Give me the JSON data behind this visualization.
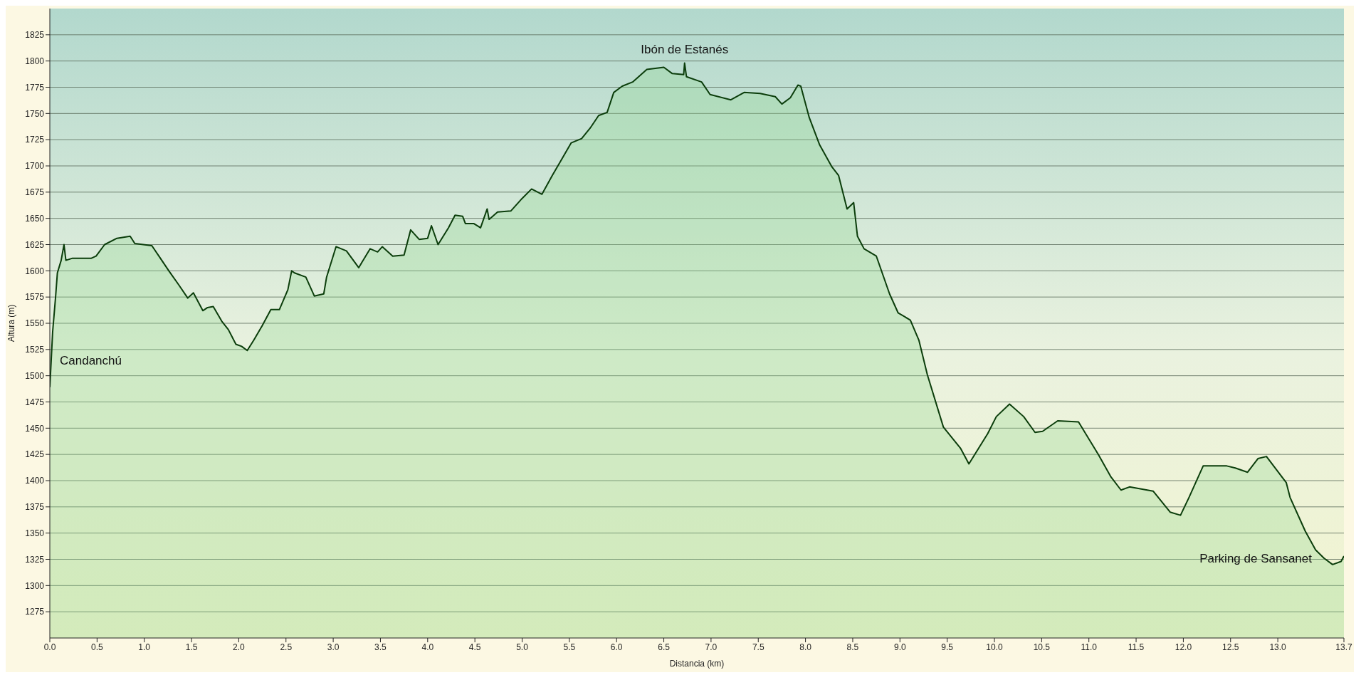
{
  "chart_data": {
    "type": "area",
    "xlabel": "Distancia (km)",
    "ylabel": "Altura (m)",
    "x": [
      0,
      0.03,
      0.06,
      0.08,
      0.12,
      0.15,
      0.17,
      0.24,
      0.44,
      0.49,
      0.58,
      0.71,
      0.85,
      0.9,
      1.08,
      1.17,
      1.26,
      1.37,
      1.46,
      1.52,
      1.62,
      1.67,
      1.73,
      1.82,
      1.89,
      1.97,
      2.03,
      2.09,
      2.16,
      2.25,
      2.34,
      2.43,
      2.52,
      2.56,
      2.59,
      2.71,
      2.8,
      2.9,
      2.93,
      3.03,
      3.14,
      3.27,
      3.39,
      3.47,
      3.52,
      3.63,
      3.75,
      3.82,
      3.91,
      4.0,
      4.04,
      4.11,
      4.22,
      4.29,
      4.37,
      4.4,
      4.49,
      4.56,
      4.63,
      4.65,
      4.74,
      4.88,
      5.0,
      5.1,
      5.21,
      5.32,
      5.41,
      5.52,
      5.63,
      5.72,
      5.81,
      5.9,
      5.97,
      6.06,
      6.17,
      6.32,
      6.5,
      6.59,
      6.71,
      6.72,
      6.74,
      6.9,
      6.99,
      7.21,
      7.35,
      7.52,
      7.68,
      7.75,
      7.84,
      7.92,
      7.95,
      8.04,
      8.15,
      8.28,
      8.35,
      8.44,
      8.51,
      8.55,
      8.62,
      8.75,
      8.89,
      8.98,
      9.11,
      9.2,
      9.29,
      9.46,
      9.64,
      9.73,
      9.93,
      10.02,
      10.16,
      10.31,
      10.43,
      10.51,
      10.67,
      10.89,
      11.1,
      11.23,
      11.34,
      11.43,
      11.68,
      11.86,
      11.97,
      12.06,
      12.21,
      12.46,
      12.55,
      12.68,
      12.79,
      12.88,
      13.09,
      13.13,
      13.29,
      13.4,
      13.49,
      13.58,
      13.67,
      13.7
    ],
    "series": [
      {
        "color": "#0b3d0b",
        "values": [
          1489,
          1542,
          1574,
          1598,
          1610,
          1625,
          1610,
          1612,
          1612,
          1614,
          1625,
          1631,
          1633,
          1626,
          1624,
          1612,
          1600,
          1586,
          1574,
          1579,
          1562,
          1565,
          1566,
          1552,
          1544,
          1530,
          1528,
          1524,
          1534,
          1548,
          1563,
          1563,
          1582,
          1600,
          1598,
          1594,
          1576,
          1578,
          1594,
          1623,
          1619,
          1603,
          1621,
          1618,
          1623,
          1614,
          1615,
          1639,
          1630,
          1631,
          1643,
          1625,
          1641,
          1653,
          1652,
          1645,
          1645,
          1641,
          1659,
          1649,
          1656,
          1657,
          1669,
          1678,
          1673,
          1691,
          1705,
          1722,
          1726,
          1736,
          1748,
          1751,
          1770,
          1776,
          1780,
          1792,
          1794,
          1788,
          1787,
          1798,
          1785,
          1780,
          1768,
          1763,
          1770,
          1769,
          1766,
          1759,
          1765,
          1777,
          1776,
          1746,
          1720,
          1699,
          1691,
          1659,
          1665,
          1633,
          1621,
          1614,
          1578,
          1560,
          1553,
          1534,
          1501,
          1451,
          1431,
          1416,
          1445,
          1461,
          1473,
          1461,
          1446,
          1447,
          1457,
          1456,
          1425,
          1404,
          1391,
          1394,
          1390,
          1370,
          1367,
          1384,
          1414,
          1414,
          1412,
          1408,
          1421,
          1423,
          1398,
          1384,
          1352,
          1334,
          1326,
          1320,
          1323,
          1328
        ]
      }
    ],
    "xlim": [
      0,
      13.7
    ],
    "xticks": [
      {
        "value": 0,
        "label": "0.0"
      },
      0.5,
      {
        "value": 1,
        "label": "1.0"
      },
      1.5,
      {
        "value": 2,
        "label": "2.0"
      },
      2.5,
      {
        "value": 3,
        "label": "3.0"
      },
      3.5,
      {
        "value": 4,
        "label": "4.0"
      },
      4.5,
      {
        "value": 5,
        "label": "5.0"
      },
      5.5,
      {
        "value": 6,
        "label": "6.0"
      },
      6.5,
      {
        "value": 7,
        "label": "7.0"
      },
      7.5,
      {
        "value": 8,
        "label": "8.0"
      },
      8.5,
      {
        "value": 9,
        "label": "9.0"
      },
      9.5,
      {
        "value": 10,
        "label": "10.0"
      },
      10.5,
      {
        "value": 11,
        "label": "11.0"
      },
      11.5,
      {
        "value": 12,
        "label": "12.0"
      },
      12.5,
      {
        "value": 13,
        "label": "13.0"
      },
      13.7
    ],
    "ylim": [
      1250,
      1850
    ],
    "yticks": [
      1275,
      1300,
      1325,
      1350,
      1375,
      1400,
      1425,
      1450,
      1475,
      1500,
      1525,
      1550,
      1575,
      1600,
      1625,
      1650,
      1675,
      1700,
      1725,
      1750,
      1775,
      1800,
      1825
    ],
    "grid": "y",
    "marker": "none",
    "line_style": "solid",
    "annotations": [
      {
        "text": "Candanchú",
        "x": 0,
        "y": 1515
      },
      {
        "text": "Ibón de Estanés",
        "x": 6.72,
        "y": 1798
      },
      {
        "text": "Parking de Sansanet",
        "x": 13.7,
        "y": 1326
      }
    ]
  }
}
